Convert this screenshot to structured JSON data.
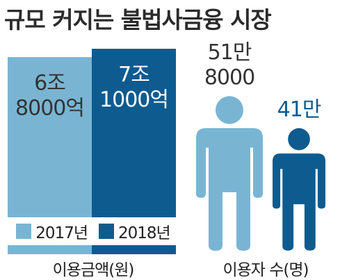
{
  "title": "규모 커지는 불법사금융 시장",
  "colors": {
    "y2017": "#79b5d3",
    "y2018": "#0e5b8f",
    "text_dark": "#333333",
    "text_blue": "#0e5b8f"
  },
  "chart_data": [
    {
      "type": "bar",
      "categories": [
        "2017년",
        "2018년"
      ],
      "values": [
        6.8,
        7.1
      ],
      "unit": "조원",
      "value_labels": [
        "6조\n8000억",
        "7조\n1000억"
      ],
      "xlabel": "이용금액(원)",
      "ylim": [
        0,
        7.1
      ],
      "legend": {
        "placement": "bottom-inside",
        "entries": [
          "2017년",
          "2018년"
        ]
      }
    },
    {
      "type": "bar",
      "categories": [
        "2017년",
        "2018년"
      ],
      "values": [
        51.8,
        41
      ],
      "unit": "만명",
      "value_labels": [
        "51만\n8000",
        "41만"
      ],
      "xlabel": "이용자 수(명)",
      "style": "pictograph-person"
    }
  ]
}
